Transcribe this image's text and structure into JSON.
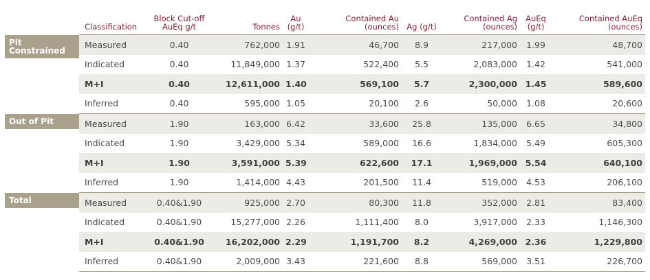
{
  "headers": {
    "classification": "Classification",
    "cutoff_line1": "Block Cut-off",
    "cutoff_line2": "AuEq g/t",
    "tonnes": "Tonnes",
    "au_line1": "Au",
    "au_line2": "(g/t)",
    "contained_au_line1": "Contained Au",
    "contained_au_line2": "(ounces)",
    "ag": "Ag (g/t)",
    "contained_ag_line1": "Contained Ag",
    "contained_ag_line2": "(ounces)",
    "aueq_line1": "AuEq",
    "aueq_line2": "(g/t)",
    "contained_aueq_line1": "Contained AuEq",
    "contained_aueq_line2": "(ounces)"
  },
  "groups": [
    {
      "label_line1": "Pit",
      "label_line2": "Constrained",
      "rows": [
        {
          "classification": "Measured",
          "cutoff": "0.40",
          "tonnes": "762,000",
          "au": "1.91",
          "contained_au": "46,700",
          "ag": "8.9",
          "contained_ag": "217,000",
          "aueq": "1.99",
          "contained_aueq": "48,700"
        },
        {
          "classification": "Indicated",
          "cutoff": "0.40",
          "tonnes": "11,849,000",
          "au": "1.37",
          "contained_au": "522,400",
          "ag": "5.5",
          "contained_ag": "2,083,000",
          "aueq": "1.42",
          "contained_aueq": "541,000"
        },
        {
          "classification": "M+I",
          "cutoff": "0.40",
          "tonnes": "12,611,000",
          "au": "1.40",
          "contained_au": "569,100",
          "ag": "5.7",
          "contained_ag": "2,300,000",
          "aueq": "1.45",
          "contained_aueq": "589,600"
        },
        {
          "classification": "Inferred",
          "cutoff": "0.40",
          "tonnes": "595,000",
          "au": "1.05",
          "contained_au": "20,100",
          "ag": "2.6",
          "contained_ag": "50,000",
          "aueq": "1.08",
          "contained_aueq": "20,600"
        }
      ]
    },
    {
      "label_line1": "Out of Pit",
      "label_line2": "",
      "rows": [
        {
          "classification": "Measured",
          "cutoff": "1.90",
          "tonnes": "163,000",
          "au": "6.42",
          "contained_au": "33,600",
          "ag": "25.8",
          "contained_ag": "135,000",
          "aueq": "6.65",
          "contained_aueq": "34,800"
        },
        {
          "classification": "Indicated",
          "cutoff": "1.90",
          "tonnes": "3,429,000",
          "au": "5.34",
          "contained_au": "589,000",
          "ag": "16.6",
          "contained_ag": "1,834,000",
          "aueq": "5.49",
          "contained_aueq": "605,300"
        },
        {
          "classification": "M+I",
          "cutoff": "1.90",
          "tonnes": "3,591,000",
          "au": "5.39",
          "contained_au": "622,600",
          "ag": "17.1",
          "contained_ag": "1,969,000",
          "aueq": "5.54",
          "contained_aueq": "640,100"
        },
        {
          "classification": "Inferred",
          "cutoff": "1.90",
          "tonnes": "1,414,000",
          "au": "4.43",
          "contained_au": "201,500",
          "ag": "11.4",
          "contained_ag": "519,000",
          "aueq": "4.53",
          "contained_aueq": "206,100"
        }
      ]
    },
    {
      "label_line1": "Total",
      "label_line2": "",
      "rows": [
        {
          "classification": "Measured",
          "cutoff": "0.40&1.90",
          "tonnes": "925,000",
          "au": "2.70",
          "contained_au": "80,300",
          "ag": "11.8",
          "contained_ag": "352,000",
          "aueq": "2.81",
          "contained_aueq": "83,400"
        },
        {
          "classification": "Indicated",
          "cutoff": "0.40&1.90",
          "tonnes": "15,277,000",
          "au": "2.26",
          "contained_au": "1,111,400",
          "ag": "8.0",
          "contained_ag": "3,917,000",
          "aueq": "2.33",
          "contained_aueq": "1,146,300"
        },
        {
          "classification": "M+I",
          "cutoff": "0.40&1.90",
          "tonnes": "16,202,000",
          "au": "2.29",
          "contained_au": "1,191,700",
          "ag": "8.2",
          "contained_ag": "4,269,000",
          "aueq": "2.36",
          "contained_aueq": "1,229,800"
        },
        {
          "classification": "Inferred",
          "cutoff": "0.40&1.90",
          "tonnes": "2,009,000",
          "au": "3.43",
          "contained_au": "221,600",
          "ag": "8.8",
          "contained_ag": "569,000",
          "aueq": "3.51",
          "contained_aueq": "226,700"
        }
      ]
    }
  ],
  "colors": {
    "header_text": "#7b1f2e",
    "group_label_bg": "#a9a18c",
    "row_shade": "#ecebe6",
    "body_text": "#4a4a4a"
  }
}
